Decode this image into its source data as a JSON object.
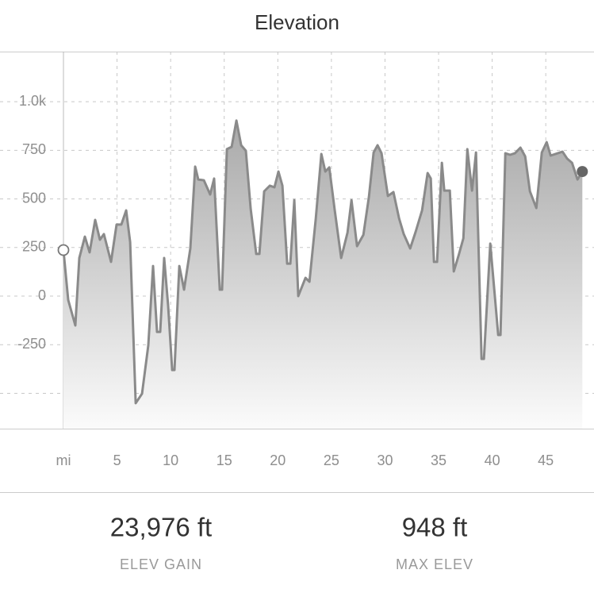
{
  "chart_data": {
    "type": "line",
    "title": "Elevation",
    "color": "#8a8a8a",
    "x": [
      0,
      0.44,
      1.11,
      1.48,
      2.0,
      2.44,
      2.96,
      3.4,
      3.77,
      4.44,
      4.96,
      5.4,
      5.85,
      6.22,
      6.74,
      7.33,
      7.92,
      8.36,
      8.73,
      9.03,
      9.4,
      9.77,
      10.14,
      10.36,
      10.81,
      11.25,
      11.84,
      12.29,
      12.58,
      13.1,
      13.69,
      14.06,
      14.58,
      14.8,
      15.25,
      15.69,
      16.14,
      16.58,
      17.02,
      17.47,
      17.99,
      18.28,
      18.73,
      19.25,
      19.69,
      20.06,
      20.43,
      20.87,
      21.17,
      21.54,
      21.91,
      22.58,
      22.95,
      23.54,
      24.06,
      24.43,
      24.8,
      25.31,
      25.91,
      26.5,
      26.87,
      27.39,
      27.98,
      28.5,
      28.94,
      29.31,
      29.68,
      30.27,
      30.79,
      31.31,
      31.75,
      32.35,
      32.86,
      33.46,
      33.98,
      34.27,
      34.57,
      34.86,
      35.31,
      35.53,
      36.05,
      36.42,
      36.86,
      37.31,
      37.68,
      38.12,
      38.49,
      39.01,
      39.23,
      39.82,
      40.27,
      40.56,
      40.78,
      41.23,
      41.67,
      42.12,
      42.63,
      43.08,
      43.52,
      44.12,
      44.63,
      45.08,
      45.45,
      46.11,
      46.56,
      47.0,
      47.45,
      47.96,
      48.41
    ],
    "values": [
      237,
      -20,
      -151,
      196,
      306,
      225,
      392,
      290,
      319,
      176,
      368,
      368,
      441,
      278,
      -551,
      -502,
      -253,
      155,
      -184,
      -184,
      196,
      -49,
      -380,
      -380,
      155,
      33,
      245,
      666,
      600,
      596,
      523,
      605,
      33,
      33,
      756,
      768,
      903,
      776,
      748,
      449,
      217,
      217,
      539,
      568,
      560,
      641,
      568,
      167,
      167,
      494,
      0,
      94,
      74,
      400,
      731,
      641,
      662,
      441,
      196,
      327,
      494,
      257,
      315,
      511,
      739,
      776,
      735,
      515,
      535,
      400,
      319,
      245,
      331,
      441,
      633,
      605,
      176,
      176,
      686,
      543,
      543,
      127,
      208,
      298,
      756,
      543,
      739,
      -323,
      -323,
      270,
      -16,
      -200,
      -200,
      735,
      727,
      735,
      764,
      719,
      539,
      453,
      739,
      792,
      723,
      735,
      743,
      707,
      686,
      600,
      641
    ],
    "xlim": [
      -5.92,
      49.5
    ],
    "ylim": [
      -682,
      1258
    ],
    "xticks": [
      {
        "value": 0,
        "label": "mi"
      },
      5,
      10,
      15,
      20,
      25,
      30,
      35,
      40,
      45
    ],
    "yticks": [
      {
        "value": -500,
        "label": null
      },
      -250,
      0,
      250,
      500,
      750,
      {
        "value": 1000,
        "label": "1.0k"
      }
    ],
    "grid": true
  },
  "stats": [
    {
      "value": "23,976 ft",
      "label": "ELEV GAIN"
    },
    {
      "value": "948 ft",
      "label": "MAX ELEV"
    }
  ]
}
